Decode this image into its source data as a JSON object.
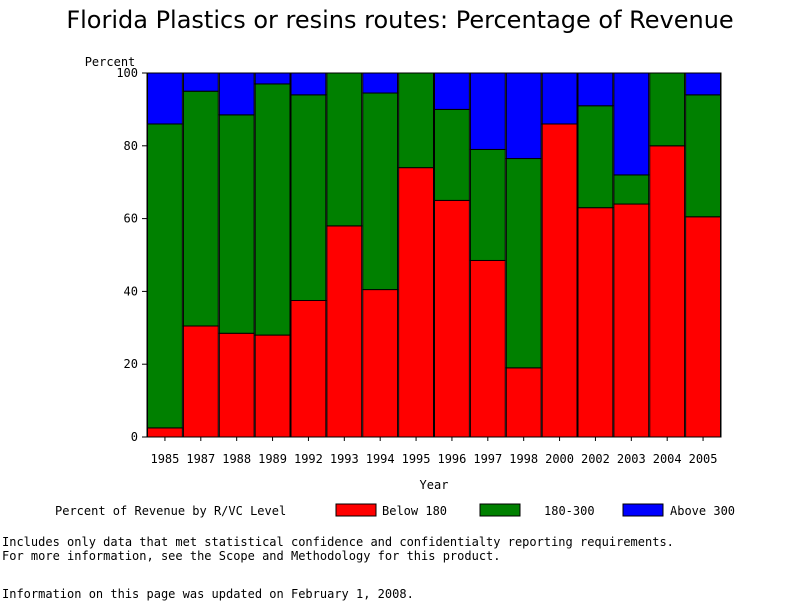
{
  "chart_data": {
    "type": "bar",
    "stacked": true,
    "title": "Florida Plastics or resins routes: Percentage of Revenue",
    "xlabel": "Year",
    "ylabel": "Percent",
    "ylim": [
      0,
      100
    ],
    "yticks": [
      0,
      20,
      40,
      60,
      80,
      100
    ],
    "categories": [
      "1985",
      "1987",
      "1988",
      "1989",
      "1992",
      "1993",
      "1994",
      "1995",
      "1996",
      "1997",
      "1998",
      "2000",
      "2002",
      "2003",
      "2004",
      "2005"
    ],
    "series": [
      {
        "name": "Below 180",
        "color": "#ff0000",
        "values": [
          2.5,
          30.5,
          28.5,
          28,
          37.5,
          58,
          40.5,
          74,
          65,
          48.5,
          19,
          86,
          63,
          64,
          80,
          60.5
        ]
      },
      {
        "name": "180-300",
        "color": "#008000",
        "values": [
          83.5,
          64.5,
          60,
          69,
          56.5,
          42,
          54,
          26,
          25,
          30.5,
          57.5,
          0,
          28,
          8,
          20,
          33.5
        ]
      },
      {
        "name": "Above 300",
        "color": "#0000ff",
        "values": [
          14,
          5,
          11.5,
          3,
          6,
          0,
          5.5,
          0,
          10,
          21,
          23.5,
          14,
          9,
          28,
          0,
          6
        ]
      }
    ],
    "legend": {
      "title": "Percent of Revenue by R/VC Level",
      "placement": "bottom"
    }
  },
  "notes": {
    "line1": "Includes only data that met statistical confidence and confidentialty reporting requirements.",
    "line2": "For more information, see the Scope and Methodology for this product.",
    "updated": "Information on this page was updated on February 1, 2008."
  }
}
